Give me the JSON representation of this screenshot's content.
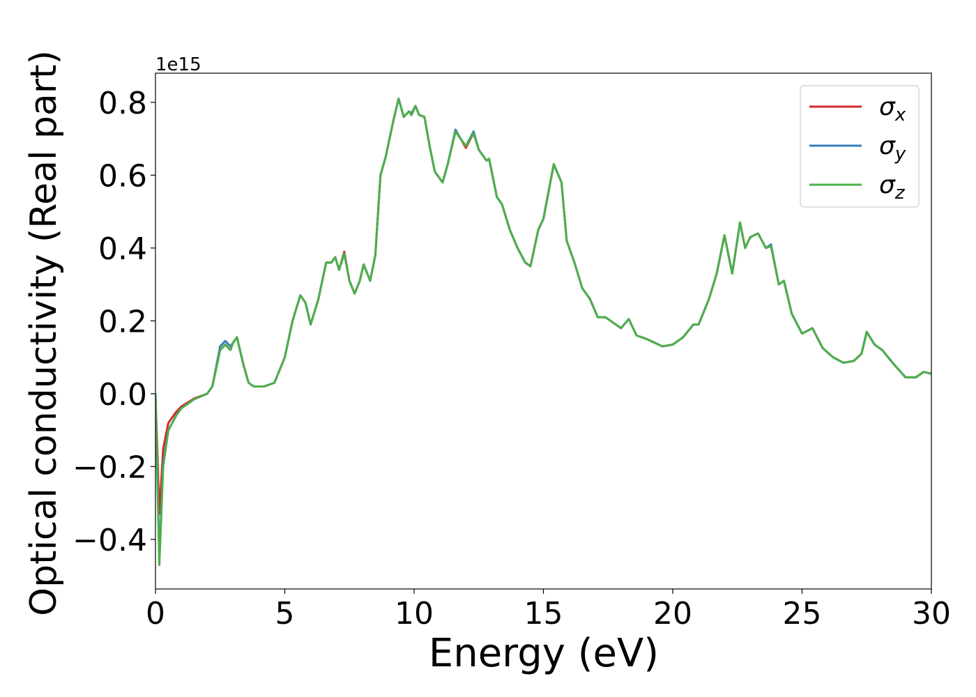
{
  "chart_data": {
    "type": "line",
    "xlabel": "Energy (eV)",
    "ylabel": "Optical conductivity (Real part)",
    "y_offset_label": "1e15",
    "xlim": [
      0,
      30
    ],
    "ylim": [
      -0.536,
      0.88
    ],
    "xticks": [
      0,
      5,
      10,
      15,
      20,
      25,
      30
    ],
    "yticks": [
      {
        "value": -0.4,
        "label": "−0.4"
      },
      {
        "value": -0.2,
        "label": "−0.2"
      },
      {
        "value": 0,
        "label": "0.0"
      },
      0.2,
      0.4,
      0.6,
      0.8
    ],
    "legend": "upper right",
    "x": [
      0,
      0.15,
      0.3,
      0.5,
      0.8,
      1.0,
      1.5,
      2.0,
      2.2,
      2.5,
      2.7,
      2.9,
      3.0,
      3.15,
      3.4,
      3.6,
      3.8,
      4.2,
      4.6,
      5.0,
      5.3,
      5.6,
      5.8,
      6.0,
      6.3,
      6.6,
      6.8,
      6.95,
      7.1,
      7.3,
      7.5,
      7.7,
      7.9,
      8.05,
      8.3,
      8.5,
      8.7,
      8.9,
      9.2,
      9.4,
      9.6,
      9.8,
      9.9,
      10.05,
      10.2,
      10.4,
      10.6,
      10.8,
      11.1,
      11.3,
      11.6,
      11.8,
      12.0,
      12.3,
      12.5,
      12.8,
      12.9,
      13.2,
      13.4,
      13.7,
      14.0,
      14.3,
      14.5,
      14.8,
      15.0,
      15.4,
      15.7,
      15.9,
      16.2,
      16.5,
      16.8,
      17.1,
      17.4,
      17.8,
      18.0,
      18.3,
      18.6,
      19.0,
      19.3,
      19.6,
      20.0,
      20.4,
      20.8,
      21.0,
      21.4,
      21.7,
      22.0,
      22.3,
      22.6,
      22.8,
      23.0,
      23.3,
      23.6,
      23.8,
      24.1,
      24.3,
      24.6,
      25.0,
      25.4,
      25.8,
      26.2,
      26.6,
      27.0,
      27.3,
      27.5,
      27.8,
      28.1,
      28.5,
      29.0,
      29.4,
      29.7,
      30.0
    ],
    "series": [
      {
        "name": "σx",
        "color": "#d62728",
        "values": [
          0,
          -0.33,
          -0.15,
          -0.08,
          -0.05,
          -0.035,
          -0.013,
          0.0,
          0.02,
          0.12,
          0.135,
          0.12,
          0.14,
          0.155,
          0.08,
          0.03,
          0.02,
          0.02,
          0.03,
          0.1,
          0.2,
          0.27,
          0.25,
          0.19,
          0.26,
          0.36,
          0.36,
          0.375,
          0.34,
          0.39,
          0.31,
          0.275,
          0.31,
          0.355,
          0.31,
          0.38,
          0.6,
          0.65,
          0.75,
          0.81,
          0.76,
          0.775,
          0.765,
          0.79,
          0.765,
          0.76,
          0.68,
          0.61,
          0.58,
          0.63,
          0.72,
          0.7,
          0.675,
          0.715,
          0.67,
          0.64,
          0.645,
          0.54,
          0.52,
          0.45,
          0.4,
          0.36,
          0.35,
          0.45,
          0.48,
          0.63,
          0.58,
          0.42,
          0.36,
          0.29,
          0.26,
          0.21,
          0.21,
          0.19,
          0.18,
          0.205,
          0.16,
          0.15,
          0.14,
          0.13,
          0.135,
          0.155,
          0.19,
          0.19,
          0.26,
          0.33,
          0.435,
          0.33,
          0.47,
          0.4,
          0.43,
          0.44,
          0.4,
          0.405,
          0.3,
          0.31,
          0.22,
          0.165,
          0.18,
          0.125,
          0.1,
          0.085,
          0.09,
          0.11,
          0.17,
          0.135,
          0.12,
          0.085,
          0.045,
          0.045,
          0.06,
          0.055
        ]
      },
      {
        "name": "σy",
        "color": "#377eb8",
        "values": [
          0,
          -0.45,
          -0.19,
          -0.1,
          -0.06,
          -0.04,
          -0.015,
          0.0,
          0.02,
          0.13,
          0.145,
          0.13,
          0.14,
          0.155,
          0.08,
          0.03,
          0.02,
          0.02,
          0.03,
          0.1,
          0.2,
          0.27,
          0.25,
          0.19,
          0.26,
          0.36,
          0.36,
          0.375,
          0.34,
          0.385,
          0.31,
          0.275,
          0.31,
          0.355,
          0.31,
          0.38,
          0.6,
          0.65,
          0.75,
          0.81,
          0.76,
          0.775,
          0.77,
          0.79,
          0.765,
          0.76,
          0.68,
          0.61,
          0.58,
          0.63,
          0.725,
          0.7,
          0.68,
          0.72,
          0.67,
          0.64,
          0.645,
          0.54,
          0.52,
          0.45,
          0.4,
          0.36,
          0.35,
          0.45,
          0.48,
          0.63,
          0.58,
          0.42,
          0.36,
          0.29,
          0.26,
          0.21,
          0.21,
          0.19,
          0.18,
          0.205,
          0.16,
          0.15,
          0.14,
          0.13,
          0.135,
          0.155,
          0.19,
          0.19,
          0.26,
          0.33,
          0.435,
          0.33,
          0.47,
          0.4,
          0.43,
          0.44,
          0.4,
          0.41,
          0.3,
          0.31,
          0.22,
          0.165,
          0.18,
          0.125,
          0.1,
          0.085,
          0.09,
          0.11,
          0.17,
          0.135,
          0.12,
          0.085,
          0.045,
          0.045,
          0.06,
          0.055
        ]
      },
      {
        "name": "σz",
        "color": "#4daf4a",
        "values": [
          0,
          -0.47,
          -0.2,
          -0.1,
          -0.06,
          -0.04,
          -0.015,
          0.0,
          0.02,
          0.12,
          0.135,
          0.12,
          0.14,
          0.155,
          0.08,
          0.03,
          0.02,
          0.02,
          0.03,
          0.1,
          0.2,
          0.27,
          0.25,
          0.19,
          0.26,
          0.36,
          0.36,
          0.375,
          0.34,
          0.385,
          0.31,
          0.275,
          0.31,
          0.355,
          0.31,
          0.38,
          0.6,
          0.65,
          0.75,
          0.81,
          0.76,
          0.775,
          0.765,
          0.79,
          0.765,
          0.76,
          0.68,
          0.61,
          0.58,
          0.63,
          0.72,
          0.7,
          0.68,
          0.715,
          0.67,
          0.64,
          0.645,
          0.54,
          0.52,
          0.45,
          0.4,
          0.36,
          0.35,
          0.45,
          0.48,
          0.63,
          0.58,
          0.42,
          0.36,
          0.29,
          0.26,
          0.21,
          0.21,
          0.19,
          0.18,
          0.205,
          0.16,
          0.15,
          0.14,
          0.13,
          0.135,
          0.155,
          0.19,
          0.19,
          0.26,
          0.33,
          0.435,
          0.33,
          0.47,
          0.4,
          0.43,
          0.44,
          0.4,
          0.405,
          0.3,
          0.31,
          0.22,
          0.165,
          0.18,
          0.125,
          0.1,
          0.085,
          0.09,
          0.11,
          0.17,
          0.135,
          0.12,
          0.085,
          0.045,
          0.045,
          0.06,
          0.055
        ]
      }
    ]
  }
}
